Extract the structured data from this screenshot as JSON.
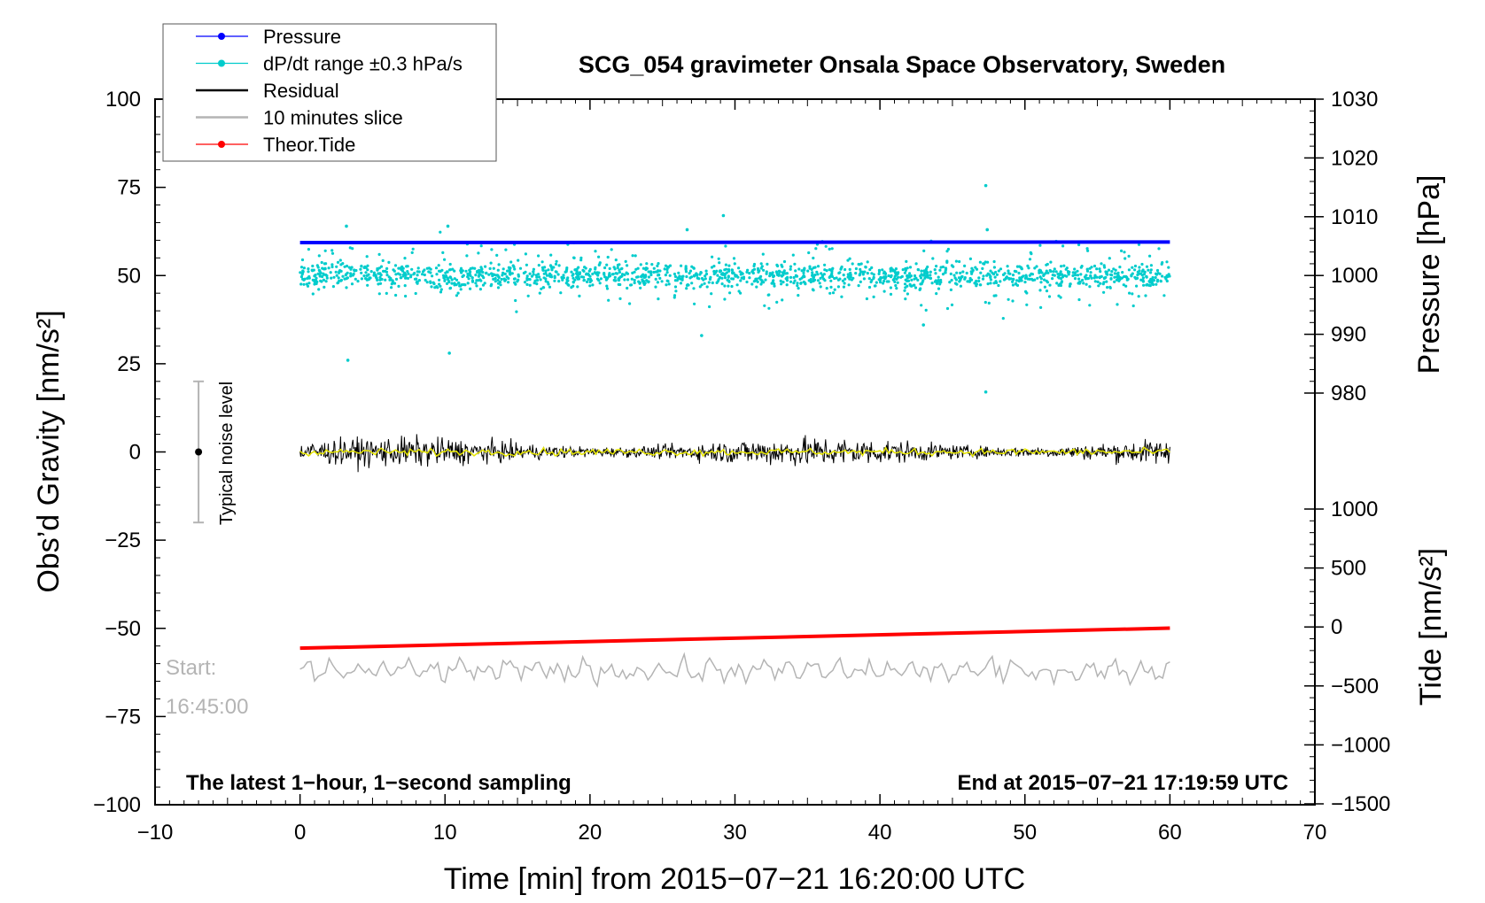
{
  "colors": {
    "pressure": "#0000ff",
    "dpdt": "#00cccc",
    "residual": "#000000",
    "slice": "#b4b4b4",
    "tide": "#ff0000",
    "smooth": "#e6e600"
  },
  "chart_data": {
    "type": "line",
    "title": "SCG_054 gravimeter Onsala Space Observatory, Sweden",
    "xlabel": "Time [min] from 2015−07−21 16:20:00 UTC",
    "ylabel_left": "Obs’d Gravity [nm/s²]",
    "ylabel_right_pressure": "Pressure [hPa]",
    "ylabel_right_tide": "Tide [nm/s²]",
    "xlim": [
      -10,
      70
    ],
    "ylim": [
      -100,
      100
    ],
    "pressure_axis_range": [
      980,
      1030
    ],
    "tide_axis_range": [
      -1500,
      1000
    ],
    "x_ticks": [
      {
        "value": -10,
        "label": "−10"
      },
      {
        "value": 0,
        "label": "0"
      },
      {
        "value": 10,
        "label": "10"
      },
      {
        "value": 20,
        "label": "20"
      },
      {
        "value": 30,
        "label": "30"
      },
      {
        "value": 40,
        "label": "40"
      },
      {
        "value": 50,
        "label": "50"
      },
      {
        "value": 60,
        "label": "60"
      },
      {
        "value": 70,
        "label": "70"
      }
    ],
    "y_ticks": [
      {
        "value": 100,
        "label": "100"
      },
      {
        "value": 75,
        "label": "75"
      },
      {
        "value": 50,
        "label": "50"
      },
      {
        "value": 25,
        "label": "25"
      },
      {
        "value": 0,
        "label": "0"
      },
      {
        "value": -25,
        "label": "−25"
      },
      {
        "value": -50,
        "label": "−50"
      },
      {
        "value": -75,
        "label": "−75"
      },
      {
        "value": -100,
        "label": "−100"
      }
    ],
    "pressure_ticks": [
      {
        "value": 1030,
        "label": "1030"
      },
      {
        "value": 1020,
        "label": "1020"
      },
      {
        "value": 1010,
        "label": "1010"
      },
      {
        "value": 1000,
        "label": "1000"
      },
      {
        "value": 990,
        "label": "990"
      },
      {
        "value": 980,
        "label": "980"
      }
    ],
    "tide_ticks": [
      {
        "value": 1000,
        "label": "1000"
      },
      {
        "value": 500,
        "label": "500"
      },
      {
        "value": 0,
        "label": "0"
      },
      {
        "value": -500,
        "label": "−500"
      },
      {
        "value": -1000,
        "label": "−1000"
      },
      {
        "value": -1500,
        "label": "−1500"
      }
    ],
    "legend": [
      {
        "label": "Pressure",
        "style": "line-dot",
        "color": "#0000ff"
      },
      {
        "label": "dP/dt range ±0.3 hPa/s",
        "style": "line-dot",
        "color": "#00cccc"
      },
      {
        "label": "Residual",
        "style": "line",
        "color": "#000000"
      },
      {
        "label": "10 minutes slice",
        "style": "line",
        "color": "#b4b4b4"
      },
      {
        "label": "Theor.Tide",
        "style": "line-dot",
        "color": "#ff0000"
      }
    ],
    "series": [
      {
        "name": "Pressure",
        "axis": "pressure",
        "x": [
          0,
          60
        ],
        "values": [
          1005.6,
          1005.7
        ]
      },
      {
        "name": "dP/dt range ±0.3 hPa/s",
        "axis": "gravity",
        "x": [
          0,
          60
        ],
        "center": 50,
        "typical_spread": 5,
        "outliers": [
          {
            "x": 3.2,
            "y": 64
          },
          {
            "x": 3.3,
            "y": 26
          },
          {
            "x": 10.2,
            "y": 64
          },
          {
            "x": 10.3,
            "y": 28
          },
          {
            "x": 26.7,
            "y": 63
          },
          {
            "x": 27.7,
            "y": 33
          },
          {
            "x": 29.2,
            "y": 67
          },
          {
            "x": 43,
            "y": 36
          },
          {
            "x": 47.3,
            "y": 75.5
          },
          {
            "x": 47.3,
            "y": 17
          },
          {
            "x": 47.4,
            "y": 63
          }
        ]
      },
      {
        "name": "Residual",
        "axis": "gravity",
        "x": [
          0,
          60
        ],
        "center": 0,
        "amplitude": 5
      },
      {
        "name": "10 minutes slice",
        "axis": "gravity",
        "x": [
          0,
          60
        ],
        "center": -62,
        "amplitude": 4
      },
      {
        "name": "Theor.Tide",
        "axis": "tide",
        "x": [
          0,
          60
        ],
        "values": [
          -180,
          -10
        ]
      }
    ],
    "noise_bar": {
      "x": -7,
      "center": 0,
      "low": -20,
      "high": 20,
      "label": "Typical noise level"
    },
    "start_label_1": "Start:",
    "start_label_2": "16:45:00",
    "bottom_left_note": "The latest 1−hour, 1−second sampling",
    "bottom_right_note": "End at 2015−07−21 17:19:59 UTC"
  }
}
